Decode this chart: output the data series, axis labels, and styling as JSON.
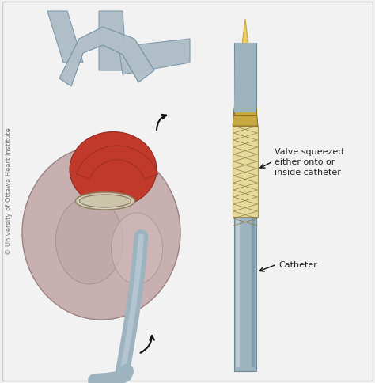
{
  "bg_color": "#f2f2f2",
  "border_color": "#cccccc",
  "copyright_text": "© University of Ottawa Heart Institute",
  "label1": "Valve squeezed\neither onto or\ninside catheter",
  "label2": "Catheter",
  "catheter_color": "#9eb3c0",
  "catheter_highlight": "#c8d8e0",
  "catheter_shadow": "#6a8a9a",
  "valve_mesh_color": "#d4c490",
  "valve_tip_color": "#c8a840",
  "valve_tip_light": "#e8c860",
  "heart_red": "#c0392b",
  "heart_dark_red": "#922b21",
  "vessel_gray": "#b0bec8",
  "arrow_color": "#111111",
  "text_color": "#222222",
  "label_font_size": 8.0,
  "copyright_font_size": 6.0
}
